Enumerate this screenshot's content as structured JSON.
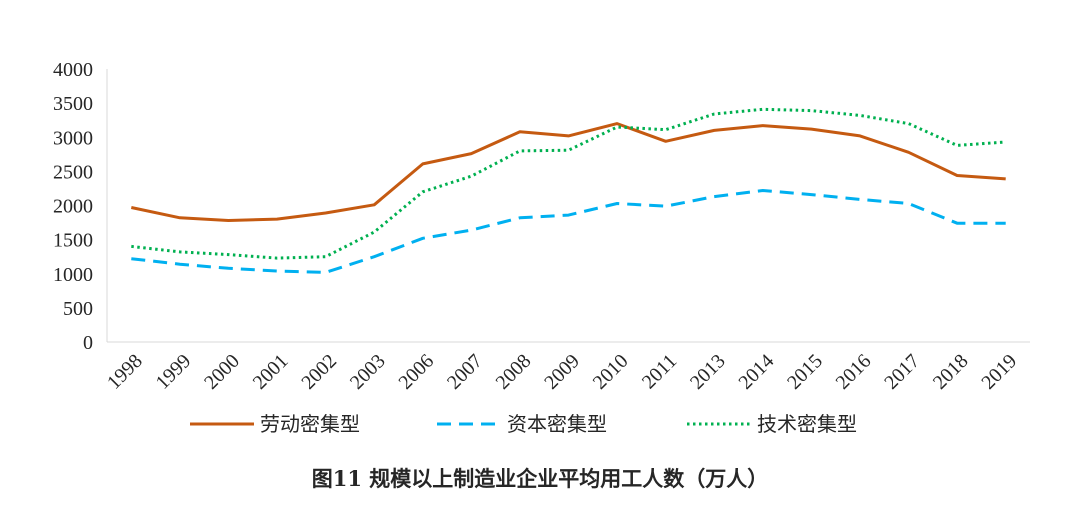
{
  "chart_data": {
    "type": "line",
    "categories": [
      "1998",
      "1999",
      "2000",
      "2001",
      "2002",
      "2003",
      "2006",
      "2007",
      "2008",
      "2009",
      "2010",
      "2011",
      "2013",
      "2014",
      "2015",
      "2016",
      "2017",
      "2018",
      "2019"
    ],
    "ylim": [
      0,
      4000
    ],
    "yticks": [
      0,
      500,
      1000,
      1500,
      2000,
      2500,
      3000,
      3500,
      4000
    ],
    "grid": false,
    "legend_position": "bottom",
    "series": [
      {
        "name": "劳动密集型",
        "color": "#C55A11",
        "style": "solid",
        "values": [
          1970,
          1820,
          1780,
          1800,
          1890,
          2010,
          2610,
          2760,
          3080,
          3020,
          3200,
          2940,
          3100,
          3170,
          3120,
          3020,
          2780,
          2440,
          2390
        ]
      },
      {
        "name": "资本密集型",
        "color": "#00B0F0",
        "style": "dashed",
        "values": [
          1220,
          1140,
          1080,
          1040,
          1020,
          1250,
          1520,
          1640,
          1820,
          1860,
          2030,
          1990,
          2130,
          2220,
          2160,
          2090,
          2030,
          1740,
          1740
        ]
      },
      {
        "name": "技术密集型",
        "color": "#00B050",
        "style": "dotted",
        "values": [
          1400,
          1320,
          1280,
          1230,
          1250,
          1610,
          2200,
          2430,
          2800,
          2810,
          3150,
          3110,
          3340,
          3410,
          3390,
          3320,
          3200,
          2880,
          2930
        ]
      }
    ],
    "title": "图11  规模以上制造业企业平均用工人数（万人）"
  }
}
